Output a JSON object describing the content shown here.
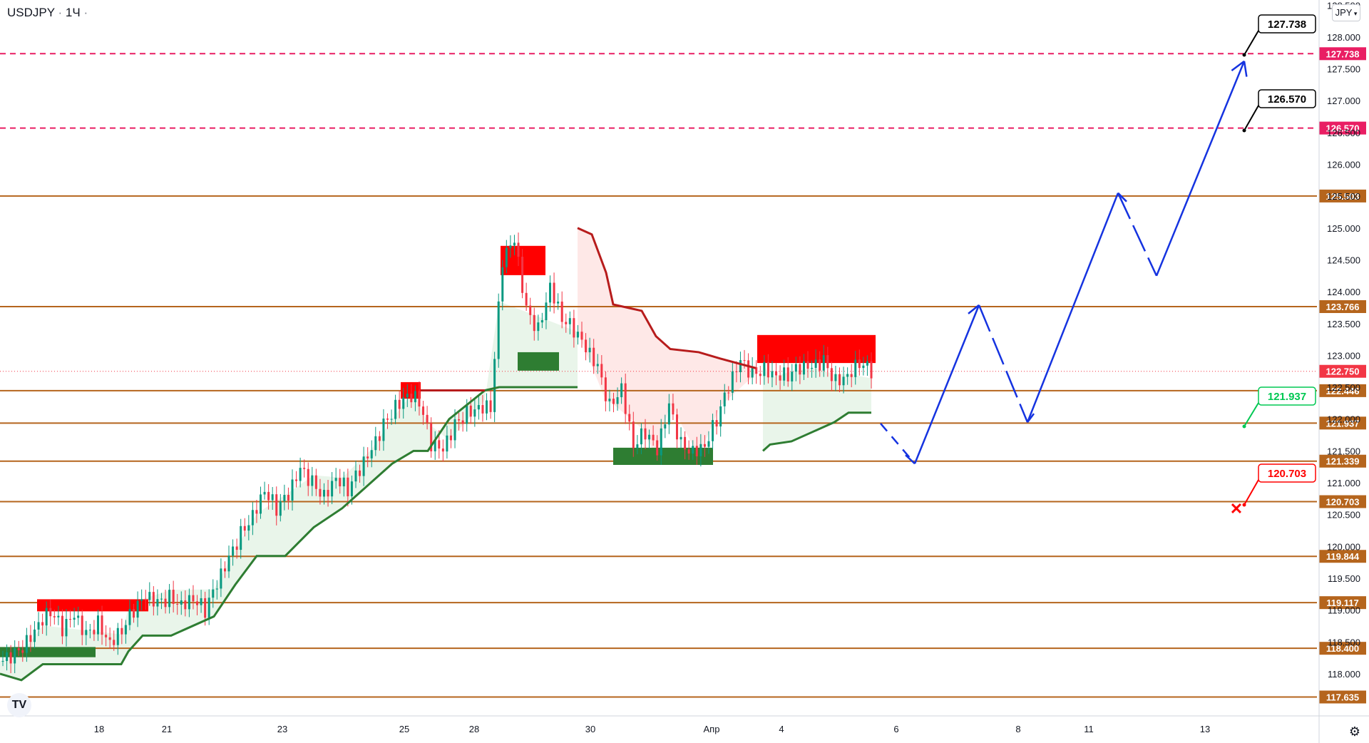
{
  "header": {
    "symbol": "USDJPY",
    "separator": "·",
    "interval": "1Ч",
    "currency": "JPY",
    "settings_icon": "gear-icon",
    "logo_text": "TV"
  },
  "colors": {
    "level_line": "#b5651d",
    "level_label": "#b5651d",
    "dashed_target": "#e91e63",
    "blue_path": "#1533e0",
    "green": "#2e7d32",
    "red": "#ff0000",
    "dark_red": "#b71c1c",
    "price_current": "#f23645"
  },
  "chart_data": {
    "type": "candlestick",
    "title": "USDJPY · 1Ч",
    "ylim": [
      117.5,
      128.5
    ],
    "y_ticks": [
      "118.000",
      "118.500",
      "119.000",
      "119.500",
      "120.000",
      "120.500",
      "121.000",
      "121.500",
      "122.000",
      "122.500",
      "123.000",
      "123.500",
      "124.000",
      "124.500",
      "125.000",
      "125.500",
      "126.000",
      "126.500",
      "127.000",
      "127.500",
      "128.000",
      "128.500"
    ],
    "x_ticks": [
      "18",
      "21",
      "23",
      "25",
      "28",
      "30",
      "Апр",
      "4",
      "6",
      "8",
      "11",
      "13"
    ],
    "current_price": "122.750",
    "horizontal_levels": [
      {
        "value": "125.503",
        "style": "solid"
      },
      {
        "value": "123.766",
        "style": "solid"
      },
      {
        "value": "122.446",
        "style": "solid"
      },
      {
        "value": "121.937",
        "style": "solid"
      },
      {
        "value": "121.339",
        "style": "solid"
      },
      {
        "value": "120.703",
        "style": "solid"
      },
      {
        "value": "119.844",
        "style": "solid"
      },
      {
        "value": "119.117",
        "style": "solid"
      },
      {
        "value": "118.400",
        "style": "solid"
      },
      {
        "value": "117.635",
        "style": "solid"
      }
    ],
    "target_levels": [
      {
        "value": "127.738",
        "style": "dashed"
      },
      {
        "value": "126.570",
        "style": "dashed"
      }
    ],
    "callouts": [
      {
        "text": "127.738",
        "color": "#000000"
      },
      {
        "text": "126.570",
        "color": "#000000"
      },
      {
        "text": "121.937",
        "color": "#00c853"
      },
      {
        "text": "120.703",
        "color": "#ff0000"
      }
    ],
    "forecast_path": [
      121.93,
      121.3,
      123.79,
      121.95,
      125.55,
      124.25,
      127.62
    ],
    "price_series": [
      118.2,
      118.3,
      118.5,
      118.8,
      119.0,
      118.7,
      118.9,
      118.6,
      118.8,
      118.5,
      118.7,
      119.0,
      119.2,
      119.1,
      119.2,
      119.1,
      119.2,
      119.0,
      119.4,
      119.8,
      120.2,
      120.5,
      120.9,
      120.6,
      120.8,
      121.2,
      121.0,
      120.8,
      121.1,
      120.9,
      121.2,
      121.5,
      121.9,
      122.2,
      122.4,
      122.3,
      121.6,
      121.5,
      121.9,
      122.1,
      122.2,
      122.2,
      124.5,
      124.8,
      123.7,
      123.4,
      124.1,
      123.6,
      123.4,
      123.1,
      122.8,
      122.2,
      122.5,
      121.6,
      121.8,
      121.5,
      122.2,
      121.6,
      121.5,
      121.6,
      122.0,
      122.5,
      122.9,
      122.7,
      122.8,
      122.7,
      122.7,
      122.8,
      122.8,
      122.9,
      122.6,
      122.7,
      122.9,
      122.75
    ]
  }
}
